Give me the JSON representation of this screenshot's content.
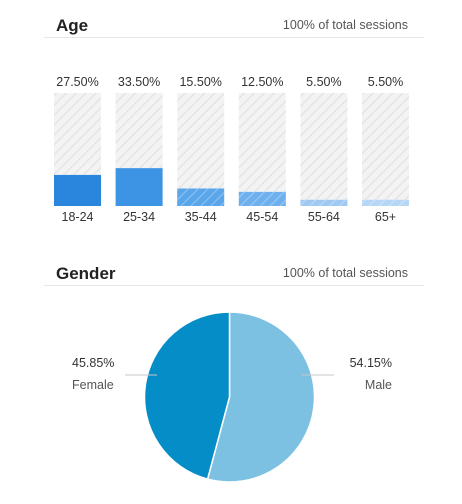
{
  "age": {
    "title": "Age",
    "subtitle": "100% of total sessions"
  },
  "gender": {
    "title": "Gender",
    "subtitle": "100% of total sessions"
  },
  "chart_data": [
    {
      "type": "bar",
      "title": "Age",
      "categories": [
        "18-24",
        "25-34",
        "35-44",
        "45-54",
        "55-64",
        "65+"
      ],
      "values": [
        27.5,
        33.5,
        15.5,
        12.5,
        5.5,
        5.5
      ],
      "value_labels": [
        "27.50%",
        "33.50%",
        "15.50%",
        "12.50%",
        "5.50%",
        "5.50%"
      ],
      "ylim": [
        0,
        100
      ],
      "colors": [
        "#2a86dd",
        "#3d93e4",
        "#5aa6ea",
        "#6eb0ee",
        "#9fc9f2",
        "#b6d6f5"
      ],
      "track_color": "#efefef"
    },
    {
      "type": "pie",
      "title": "Gender",
      "labels": [
        "Female",
        "Male"
      ],
      "values": [
        45.85,
        54.15
      ],
      "value_labels": [
        "45.85%",
        "54.15%"
      ],
      "colors": [
        "#058dc7",
        "#7cc0e2"
      ]
    }
  ]
}
